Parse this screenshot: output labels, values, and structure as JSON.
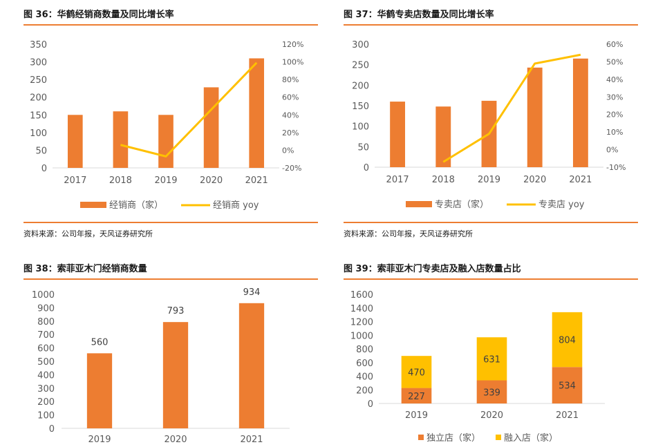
{
  "source_text": "资料来源：公司年报，天风证券研究所",
  "charts": [
    {
      "type": "bar+line",
      "title": "图 36：华鹤经销商数量及同比增长率",
      "categories": [
        "2017",
        "2018",
        "2019",
        "2020",
        "2021"
      ],
      "ylim": [
        0,
        350
      ],
      "y_ticks": [
        "0",
        "50",
        "100",
        "150",
        "200",
        "250",
        "300",
        "350"
      ],
      "y2lim": [
        -20,
        120
      ],
      "y2_ticks": [
        "-20%",
        "0%",
        "20%",
        "40%",
        "60%",
        "80%",
        "100%",
        "120%"
      ],
      "bar_series": {
        "name": "经销商（家）",
        "values": [
          150,
          160,
          150,
          228,
          310
        ],
        "color": "#ED7D31"
      },
      "line_series": {
        "name": "经销商 yoy",
        "values": [
          null,
          6,
          -7,
          46,
          99
        ],
        "color": "#FFC000"
      },
      "legend": "bottom"
    },
    {
      "type": "bar+line",
      "title": "图 37：华鹤专卖店数量及同比增长率",
      "categories": [
        "2017",
        "2018",
        "2019",
        "2020",
        "2021"
      ],
      "ylim": [
        0,
        300
      ],
      "y_ticks": [
        "0",
        "50",
        "100",
        "150",
        "200",
        "250",
        "300"
      ],
      "y2lim": [
        -10,
        60
      ],
      "y2_ticks": [
        "-10%",
        "0%",
        "10%",
        "20%",
        "30%",
        "40%",
        "50%",
        "60%"
      ],
      "bar_series": {
        "name": "专卖店（家）",
        "values": [
          160,
          148,
          162,
          243,
          265
        ],
        "color": "#ED7D31"
      },
      "line_series": {
        "name": "专卖店 yoy",
        "values": [
          null,
          -7,
          9,
          49,
          54
        ],
        "color": "#FFC000"
      },
      "legend": "bottom"
    },
    {
      "type": "bar",
      "title": "图 38：索菲亚木门经销商数量",
      "categories": [
        "2019",
        "2020",
        "2021"
      ],
      "ylim": [
        0,
        1000
      ],
      "y_ticks": [
        "0",
        "100",
        "200",
        "300",
        "400",
        "500",
        "600",
        "700",
        "800",
        "900",
        "1000"
      ],
      "values": [
        560,
        793,
        934
      ],
      "data_labels": [
        "560",
        "793",
        "934"
      ],
      "color": "#ED7D31"
    },
    {
      "type": "stacked-bar",
      "title": "图 39：索菲亚木门专卖店及融入店数量占比",
      "categories": [
        "2019",
        "2020",
        "2021"
      ],
      "ylim": [
        0,
        1600
      ],
      "y_ticks": [
        "0",
        "200",
        "400",
        "600",
        "800",
        "1000",
        "1200",
        "1400",
        "1600"
      ],
      "series": [
        {
          "name": "独立店（家）",
          "values": [
            227,
            339,
            534
          ],
          "labels": [
            "227",
            "339",
            "534"
          ],
          "color": "#ED7D31"
        },
        {
          "name": "融入店（家）",
          "values": [
            470,
            631,
            804
          ],
          "labels": [
            "470",
            "631",
            "804"
          ],
          "color": "#FFC000"
        }
      ],
      "legend": "bottom"
    }
  ]
}
